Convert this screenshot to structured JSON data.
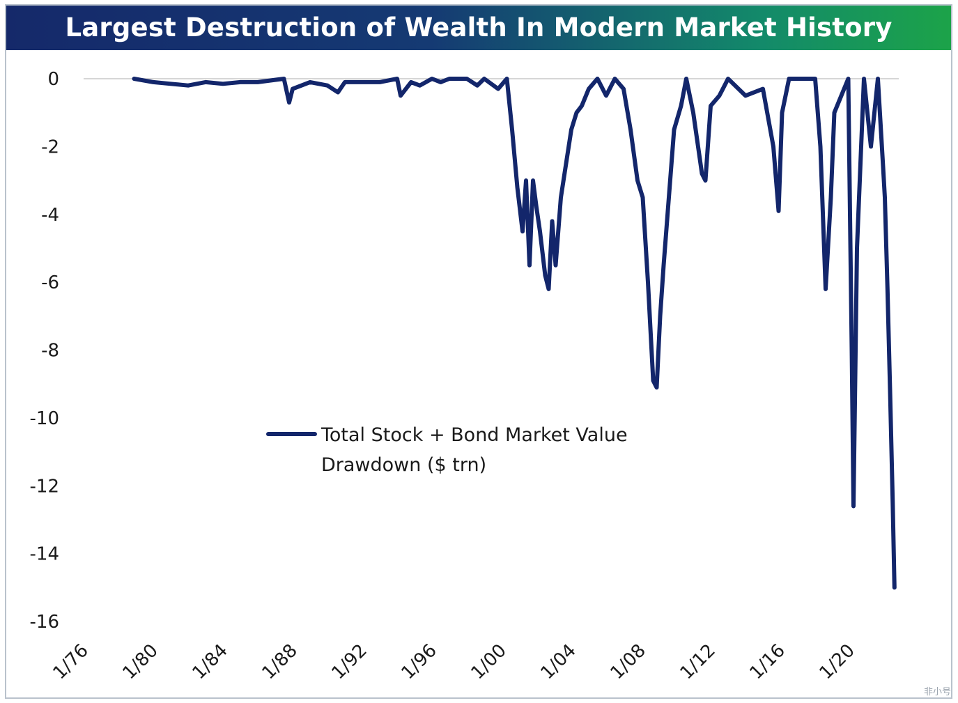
{
  "title": "Largest Destruction of Wealth In Modern Market History",
  "watermark": "非小号",
  "colors": {
    "line": "#13266b",
    "axis": "#c8c8c8"
  },
  "chart_data": {
    "type": "line",
    "title": "Largest Destruction of Wealth In Modern Market History",
    "xlabel": "",
    "ylabel": "",
    "ylim": [
      -16,
      0
    ],
    "xlim": [
      1976,
      2022.8
    ],
    "y_ticks": [
      "0",
      "-2",
      "-4",
      "-6",
      "-8",
      "-10",
      "-12",
      "-14",
      "-16"
    ],
    "x_ticks": [
      "1/76",
      "1/80",
      "1/84",
      "1/88",
      "1/92",
      "1/96",
      "1/00",
      "1/04",
      "1/08",
      "1/12",
      "1/16",
      "1/20"
    ],
    "grid": false,
    "legend": {
      "position": "center-left",
      "entries": [
        "Total Stock + Bond Market Value Drawdown ($ trn)"
      ]
    },
    "series": [
      {
        "name": "Total Stock + Bond Market Value Drawdown ($ trn)",
        "x": [
          1978.9,
          1980.0,
          1981.0,
          1982.0,
          1983.0,
          1984.0,
          1985.0,
          1986.0,
          1987.5,
          1987.8,
          1988.0,
          1989.0,
          1990.0,
          1990.6,
          1991.0,
          1992.0,
          1993.0,
          1994.0,
          1994.2,
          1994.8,
          1995.3,
          1996.0,
          1996.5,
          1997.0,
          1998.0,
          1998.6,
          1999.0,
          1999.8,
          2000.3,
          2000.6,
          2000.9,
          2001.2,
          2001.4,
          2001.6,
          2001.8,
          2002.0,
          2002.2,
          2002.5,
          2002.7,
          2002.9,
          2003.1,
          2003.4,
          2003.7,
          2004.0,
          2004.3,
          2004.6,
          2005.0,
          2005.5,
          2006.0,
          2006.5,
          2007.0,
          2007.4,
          2007.8,
          2008.1,
          2008.4,
          2008.7,
          2008.9,
          2009.1,
          2009.3,
          2009.6,
          2009.9,
          2010.3,
          2010.6,
          2011.0,
          2011.5,
          2011.7,
          2012.0,
          2012.5,
          2013.0,
          2014.0,
          2015.0,
          2015.6,
          2015.9,
          2016.1,
          2016.5,
          2017.0,
          2018.0,
          2018.3,
          2018.6,
          2018.9,
          2019.1,
          2019.5,
          2019.9,
          2020.1,
          2020.2,
          2020.4,
          2020.8,
          2021.2,
          2021.6,
          2021.9,
          2022.0,
          2022.15,
          2022.3,
          2022.45,
          2022.55
        ],
        "values": [
          0,
          -0.1,
          -0.15,
          -0.2,
          -0.1,
          -0.15,
          -0.1,
          -0.1,
          0,
          -0.7,
          -0.3,
          -0.1,
          -0.2,
          -0.4,
          -0.1,
          -0.1,
          -0.1,
          0,
          -0.5,
          -0.1,
          -0.2,
          0,
          -0.1,
          0,
          0,
          -0.2,
          0,
          -0.3,
          0,
          -1.5,
          -3.2,
          -4.5,
          -3.0,
          -5.5,
          -3.0,
          -3.8,
          -4.5,
          -5.8,
          -6.2,
          -4.2,
          -5.5,
          -3.5,
          -2.5,
          -1.5,
          -1.0,
          -0.8,
          -0.3,
          0,
          -0.5,
          0,
          -0.3,
          -1.5,
          -3.0,
          -3.5,
          -6.0,
          -8.9,
          -9.1,
          -7.0,
          -5.5,
          -3.5,
          -1.5,
          -0.8,
          0,
          -1.0,
          -2.8,
          -3.0,
          -0.8,
          -0.5,
          0,
          -0.5,
          -0.3,
          -2.0,
          -3.9,
          -1.0,
          0,
          0,
          0,
          -2.0,
          -6.2,
          -3.5,
          -1.0,
          -0.5,
          0,
          -8.0,
          -12.6,
          -5.0,
          0,
          -2.0,
          0,
          -2.6,
          -3.5,
          -6.2,
          -9.2,
          -12.5,
          -15.0
        ]
      }
    ]
  }
}
